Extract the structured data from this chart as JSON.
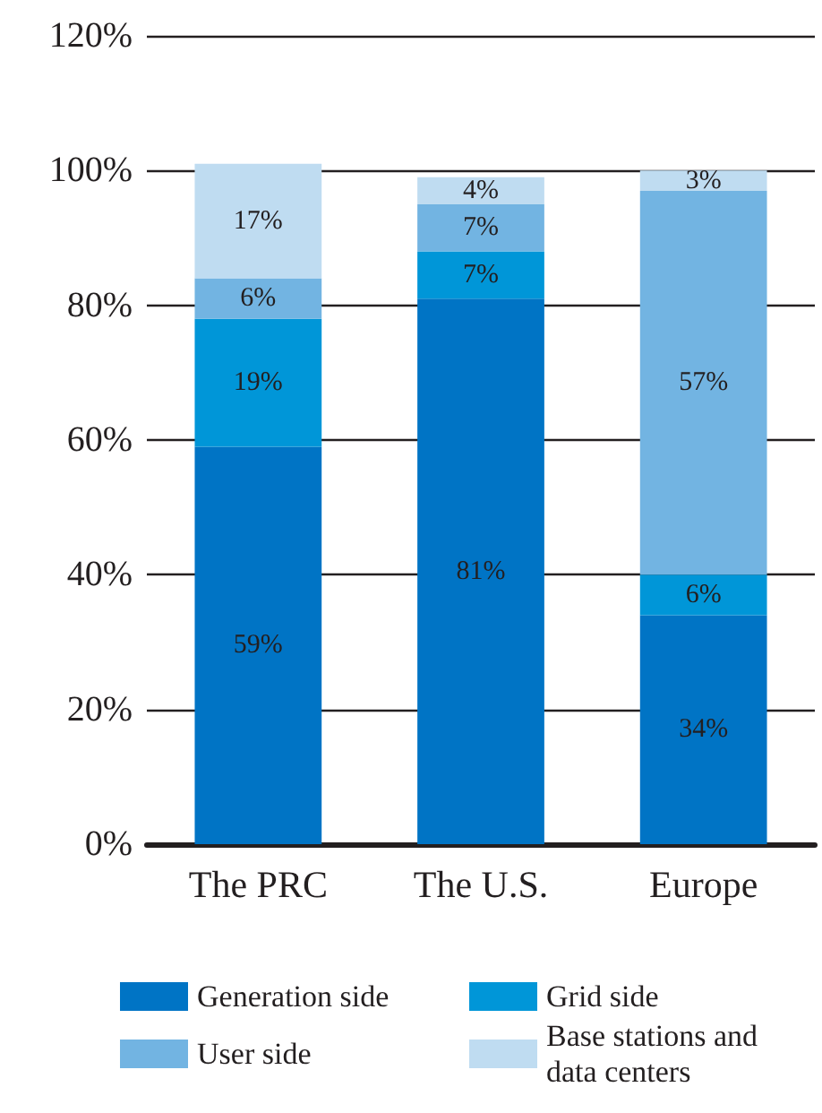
{
  "chart_data": {
    "type": "bar",
    "stacked": true,
    "categories": [
      "The PRC",
      "The U.S.",
      "Europe"
    ],
    "series": [
      {
        "name": "Generation side",
        "color": "#0074c5",
        "values": [
          59,
          81,
          34
        ],
        "value_labels": [
          "59%",
          "81%",
          "34%"
        ]
      },
      {
        "name": "Grid side",
        "color": "#0096d8",
        "values": [
          19,
          7,
          6
        ],
        "value_labels": [
          "19%",
          "7%",
          "6%"
        ]
      },
      {
        "name": "User side",
        "color": "#72b4e2",
        "values": [
          6,
          7,
          57
        ],
        "value_labels": [
          "6%",
          "7%",
          "57%"
        ]
      },
      {
        "name": "Base stations and data centers",
        "color": "#bfdcf1",
        "values": [
          17,
          4,
          3
        ],
        "value_labels": [
          "17%",
          "4%",
          "3%"
        ]
      }
    ],
    "ylim": [
      0,
      120
    ],
    "yticks": [
      {
        "value": 0,
        "label": "0%"
      },
      {
        "value": 20,
        "label": "20%"
      },
      {
        "value": 40,
        "label": "40%"
      },
      {
        "value": 60,
        "label": "60%"
      },
      {
        "value": 80,
        "label": "80%"
      },
      {
        "value": 100,
        "label": "100%"
      },
      {
        "value": 120,
        "label": "120%"
      }
    ],
    "grid": "y",
    "legend": "bottom"
  }
}
